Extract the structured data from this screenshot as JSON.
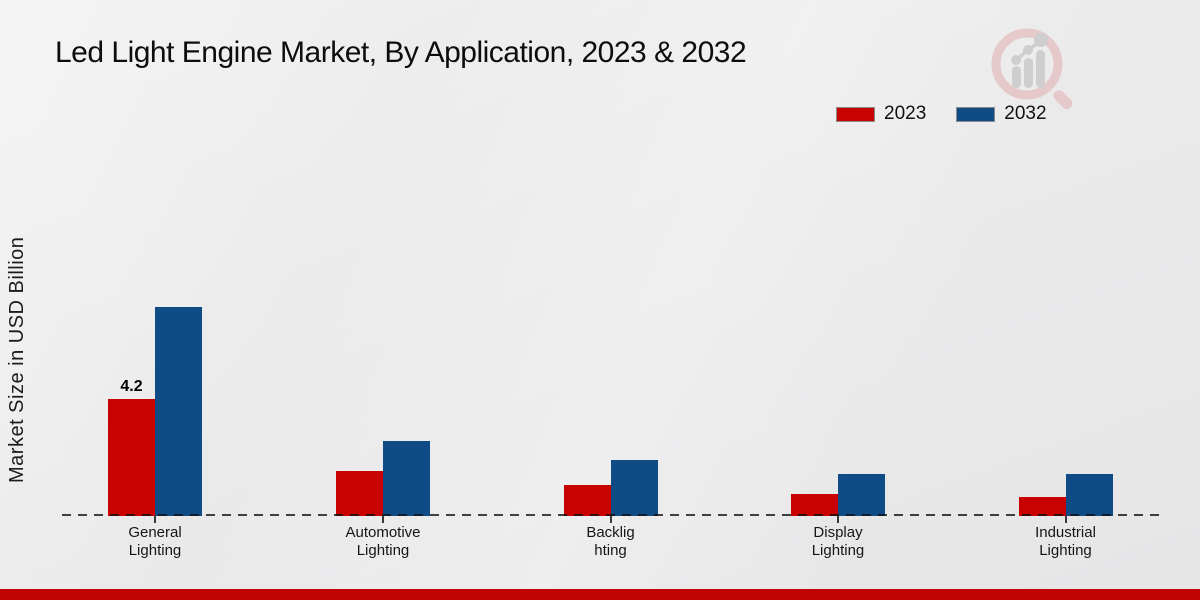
{
  "title": "Led Light Engine Market, By Application, 2023 & 2032",
  "ylabel": "Market Size in USD Billion",
  "legend": {
    "items": [
      {
        "label": "2023",
        "color": "#c80101"
      },
      {
        "label": "2032",
        "color": "#0f4c85"
      }
    ]
  },
  "colors": {
    "red_2023": "#c80101",
    "blue_2032": "#0f4c85",
    "footer_strip": "#c00404",
    "background": "#eaeaea"
  },
  "icons": {
    "watermark": "bar-chart-magnifier-logo"
  },
  "chart_data": {
    "type": "bar",
    "title": "Led Light Engine Market, By Application, 2023 & 2032",
    "xlabel": "",
    "ylabel": "Market Size in USD Billion",
    "categories": [
      "General Lighting",
      "Automotive Lighting",
      "Backlighting",
      "Display Lighting",
      "Industrial Lighting"
    ],
    "category_display_lines": [
      [
        "General",
        "Lighting"
      ],
      [
        "Automotive",
        "Lighting"
      ],
      [
        "Backlig",
        "hting"
      ],
      [
        "Display",
        "Lighting"
      ],
      [
        "Industrial",
        "Lighting"
      ]
    ],
    "series": [
      {
        "name": "2023",
        "color": "#c80101",
        "values": [
          4.2,
          1.6,
          1.1,
          0.8,
          0.7
        ]
      },
      {
        "name": "2032",
        "color": "#0f4c85",
        "values": [
          7.5,
          2.7,
          2.0,
          1.5,
          1.5
        ]
      }
    ],
    "annotations": [
      {
        "series": "2023",
        "category": "General Lighting",
        "text": "4.2"
      }
    ],
    "ylim": [
      0,
      8
    ],
    "grid": false,
    "axis_style": "dashed baseline only, no y-axis ticks",
    "legend_position": "top-right"
  }
}
